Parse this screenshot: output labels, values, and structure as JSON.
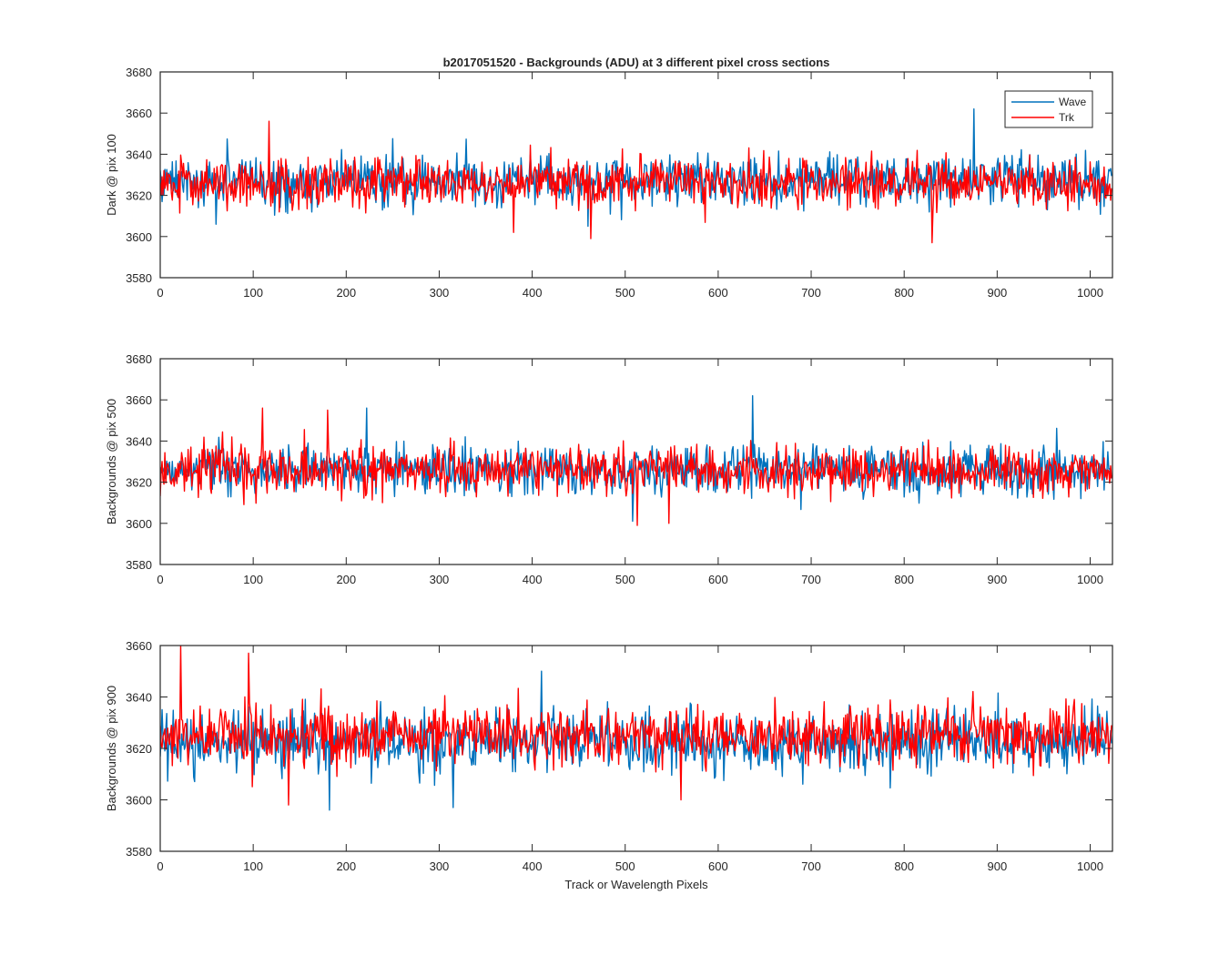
{
  "figure": {
    "title": "b2017051520 - Backgrounds (ADU) at 3 different pixel cross sections",
    "xlabel": "Track or Wavelength Pixels"
  },
  "colors": {
    "wave": "#0072BD",
    "trk": "#FF0000",
    "axes": "#262626",
    "background": "#FFFFFF"
  },
  "legend": {
    "placement": "top-right",
    "entries": [
      "Wave",
      "Trk"
    ]
  },
  "chart_data": [
    {
      "type": "line",
      "ylabel": "Dark @ pix 100",
      "xlim": [
        0,
        1024
      ],
      "ylim": [
        3580,
        3680
      ],
      "xticks": [
        "0",
        "100",
        "200",
        "300",
        "400",
        "500",
        "600",
        "700",
        "800",
        "900",
        "1000"
      ],
      "yticks": [
        "3580",
        "3600",
        "3620",
        "3640",
        "3660",
        "3680"
      ],
      "grid": false,
      "series": [
        {
          "name": "Wave",
          "mean": 3627,
          "spread": 6,
          "peaks": [
            [
              875,
              3662
            ],
            [
              60,
              3606
            ],
            [
              460,
              3605
            ]
          ]
        },
        {
          "name": "Trk",
          "mean": 3626,
          "spread": 6,
          "peaks": [
            [
              117,
              3656
            ],
            [
              830,
              3597
            ],
            [
              463,
              3599
            ],
            [
              380,
              3602
            ]
          ]
        }
      ]
    },
    {
      "type": "line",
      "ylabel": "Backgrounds @ pix 500",
      "xlim": [
        0,
        1024
      ],
      "ylim": [
        3580,
        3680
      ],
      "xticks": [
        "0",
        "100",
        "200",
        "300",
        "400",
        "500",
        "600",
        "700",
        "800",
        "900",
        "1000"
      ],
      "yticks": [
        "3580",
        "3600",
        "3620",
        "3640",
        "3660",
        "3680"
      ],
      "grid": false,
      "series": [
        {
          "name": "Wave",
          "mean": 3626,
          "spread": 6,
          "peaks": [
            [
              637,
              3662
            ],
            [
              222,
              3656
            ],
            [
              508,
              3601
            ]
          ]
        },
        {
          "name": "Trk",
          "mean": 3626,
          "spread": 6,
          "peaks": [
            [
              110,
              3656
            ],
            [
              180,
              3655
            ],
            [
              513,
              3599
            ],
            [
              547,
              3600
            ]
          ]
        }
      ]
    },
    {
      "type": "line",
      "ylabel": "Backgrounds @ pix 900",
      "xlim": [
        0,
        1024
      ],
      "ylim": [
        3580,
        3660
      ],
      "xticks": [
        "0",
        "100",
        "200",
        "300",
        "400",
        "500",
        "600",
        "700",
        "800",
        "900",
        "1000"
      ],
      "yticks": [
        "3580",
        "3600",
        "3620",
        "3640",
        "3660"
      ],
      "grid": false,
      "series": [
        {
          "name": "Wave",
          "mean": 3622,
          "spread": 6,
          "peaks": [
            [
              410,
              3650
            ],
            [
              182,
              3596
            ],
            [
              315,
              3597
            ]
          ]
        },
        {
          "name": "Trk",
          "mean": 3625,
          "spread": 6,
          "peaks": [
            [
              22,
              3660
            ],
            [
              95,
              3657
            ],
            [
              138,
              3598
            ],
            [
              560,
              3600
            ]
          ]
        }
      ]
    }
  ]
}
